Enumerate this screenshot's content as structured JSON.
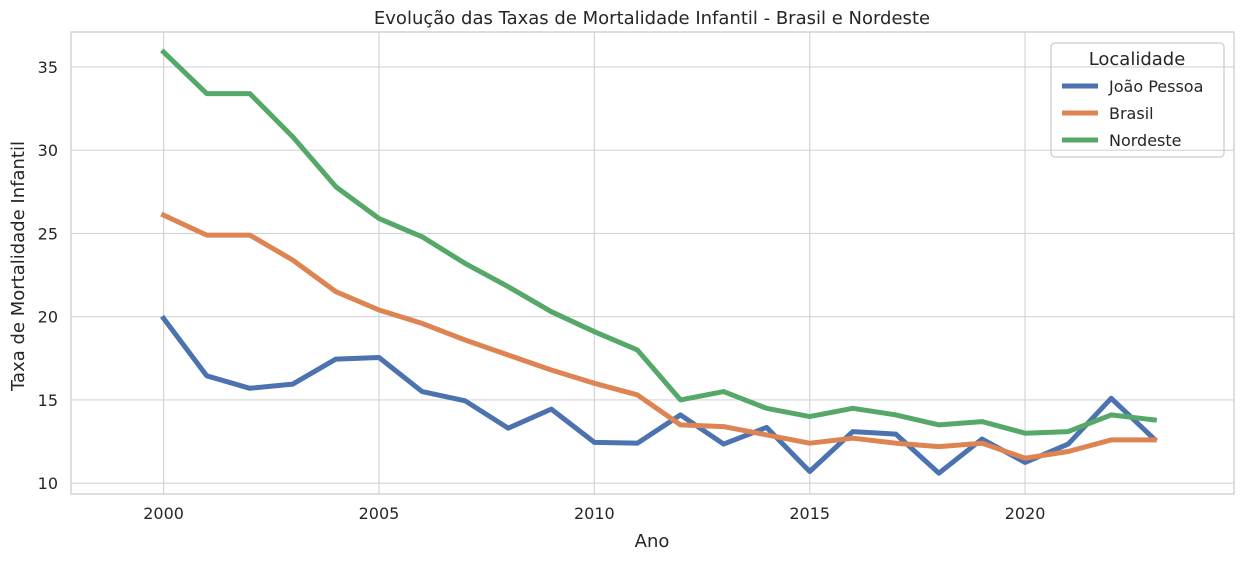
{
  "chart_data": {
    "type": "line",
    "title": "Evolução das Taxas de Mortalidade Infantil - Brasil e Nordeste",
    "xlabel": "Ano",
    "ylabel": "Taxa de Mortalidade Infantil",
    "x": [
      2000,
      2001,
      2002,
      2003,
      2004,
      2005,
      2006,
      2007,
      2008,
      2009,
      2010,
      2011,
      2012,
      2013,
      2014,
      2015,
      2016,
      2017,
      2018,
      2019,
      2020,
      2021,
      2022,
      2023
    ],
    "xlim": [
      1997.85,
      2024.85
    ],
    "ylim": [
      9.35,
      37.1
    ],
    "xticks": [
      2000,
      2005,
      2010,
      2015,
      2020
    ],
    "yticks": [
      10,
      15,
      20,
      25,
      30,
      35
    ],
    "grid": true,
    "legend": {
      "title": "Localidade",
      "placement": "top-right"
    },
    "series": [
      {
        "name": "João Pessoa",
        "color": "#4c72b0",
        "values": [
          19.9,
          16.45,
          15.7,
          15.95,
          17.45,
          17.55,
          15.5,
          14.95,
          13.3,
          14.45,
          12.45,
          12.4,
          14.1,
          12.35,
          13.35,
          10.7,
          13.1,
          12.95,
          10.6,
          12.65,
          11.25,
          12.35,
          15.1,
          12.65
        ]
      },
      {
        "name": "Brasil",
        "color": "#dd8452",
        "values": [
          26.1,
          24.9,
          24.9,
          23.4,
          21.5,
          20.4,
          19.6,
          18.6,
          17.7,
          16.8,
          16.0,
          15.3,
          13.5,
          13.4,
          12.9,
          12.4,
          12.7,
          12.4,
          12.2,
          12.4,
          11.5,
          11.9,
          12.6,
          12.6
        ]
      },
      {
        "name": "Nordeste",
        "color": "#55a868",
        "values": [
          35.9,
          33.4,
          33.4,
          30.8,
          27.8,
          25.9,
          24.8,
          23.2,
          21.8,
          20.3,
          19.1,
          18.0,
          15.0,
          15.5,
          14.5,
          14.0,
          14.5,
          14.1,
          13.5,
          13.7,
          13.0,
          13.1,
          14.1,
          13.8
        ]
      }
    ]
  }
}
